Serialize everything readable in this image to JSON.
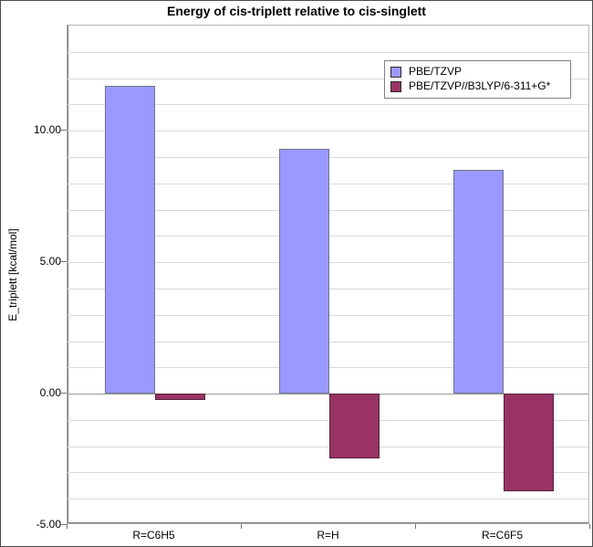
{
  "chart_data": {
    "type": "bar",
    "title": "Energy of cis-triplett relative to cis-singlett",
    "categories": [
      "R=C6H5",
      "R=H",
      "R=C6F5"
    ],
    "series": [
      {
        "name": "PBE/TZVP",
        "color": "#9999ff",
        "border_color": "#73738f",
        "values": [
          11.7,
          9.3,
          8.5
        ]
      },
      {
        "name": "PBE/TZVP//B3LYP/6-311+G*",
        "color": "#993366",
        "border_color": "#59203f",
        "values": [
          -0.25,
          -2.45,
          -3.7
        ]
      }
    ],
    "xlabel": "",
    "ylabel": "E_triplett [kcal/mol]",
    "ylim": [
      -5,
      14
    ],
    "minor_grid_step": 1,
    "y_major_ticks": [
      {
        "value": -5,
        "label": "-5.00"
      },
      {
        "value": 0,
        "label": "0.00"
      },
      {
        "value": 5,
        "label": "5.00"
      },
      {
        "value": 10,
        "label": "10.00"
      }
    ],
    "grid": true,
    "legend_position": "top-right",
    "colors": {
      "background": "#ffffff",
      "plot_border": "#b3b3b3",
      "grid_minor": "#d9d9d9",
      "zero_line": "#9a9a9a",
      "axis": "#737373",
      "text": "#000000",
      "legend_border": "#808080",
      "window_border": "#4d4d4d"
    }
  }
}
